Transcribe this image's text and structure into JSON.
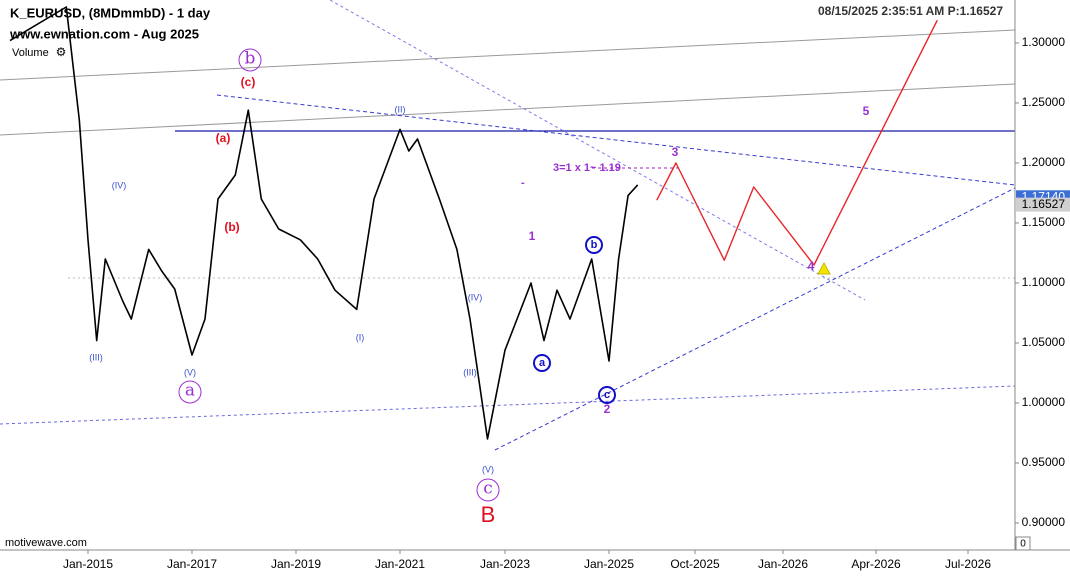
{
  "chart_data": {
    "type": "line",
    "title": "K_EURUSD, (8MDmmbD) - 1 day",
    "subtitle": "www.ewnation.com  - Aug 2025",
    "volume_label": "Volume",
    "timestamp": "08/15/2025 2:35:51 AM  P:1.16527",
    "watermark": "motivewave.com",
    "price_labels": [
      {
        "value": 1.1714,
        "label": "1.17140",
        "color": "#3b6fd6"
      },
      {
        "value": 1.16527,
        "label": "1.16527",
        "color": "#d0d0d0"
      }
    ],
    "xticks": [
      "Jan-2015",
      "Jan-2017",
      "Jan-2019",
      "Jan-2021",
      "Jan-2023",
      "Jan-2025",
      "Oct-2025",
      "Jan-2026",
      "Apr-2026",
      "Jul-2026"
    ],
    "ylim": [
      0.8775,
      1.3358
    ],
    "yticks": [
      {
        "value": 0.9,
        "label": "0.90000"
      },
      {
        "value": 0.95,
        "label": "0.95000"
      },
      {
        "value": 1.0,
        "label": "1.00000"
      },
      {
        "value": 1.05,
        "label": "1.05000"
      },
      {
        "value": 1.1,
        "label": "1.10000"
      },
      {
        "value": 1.15,
        "label": "1.15000"
      },
      {
        "value": 1.2,
        "label": "1.20000"
      },
      {
        "value": 1.25,
        "label": "1.25000"
      },
      {
        "value": 1.3,
        "label": "1.30000"
      }
    ],
    "series": [
      {
        "name": "EURUSD",
        "color": "#000000",
        "x": [
          "Jul-2013",
          "Aug-2014",
          "Nov-2014",
          "Jan-2015",
          "Mar-2015",
          "May-2015",
          "Sep-2015",
          "Nov-2015",
          "Mar-2016",
          "Jun-2016",
          "Sep-2016",
          "Jan-2017",
          "Apr-2017",
          "Jul-2017",
          "Nov-2017",
          "Feb-2018",
          "May-2018",
          "Sep-2018",
          "Feb-2019",
          "Jun-2019",
          "Oct-2019",
          "Mar-2020",
          "Jul-2020",
          "Jan-2021",
          "Mar-2021",
          "May-2021",
          "Oct-2021",
          "Feb-2022",
          "May-2022",
          "Sep-2022",
          "Jan-2023",
          "Jul-2023",
          "Oct-2023",
          "Jan-2024",
          "Apr-2024",
          "Sep-2024",
          "Jan-2025",
          "Feb-2025",
          "Mar-2025",
          "Apr-2025"
        ],
        "values": [
          1.302,
          1.33,
          1.236,
          1.136,
          1.052,
          1.12,
          1.085,
          1.07,
          1.128,
          1.11,
          1.095,
          1.04,
          1.07,
          1.17,
          1.19,
          1.244,
          1.17,
          1.145,
          1.136,
          1.12,
          1.094,
          1.078,
          1.17,
          1.228,
          1.21,
          1.22,
          1.17,
          1.128,
          1.07,
          0.97,
          1.044,
          1.1,
          1.052,
          1.094,
          1.07,
          1.12,
          1.035,
          1.12,
          1.173,
          1.1817
        ]
      },
      {
        "name": "Projection",
        "color": "#e8262a",
        "x": [
          "Jun-2025",
          "Aug-2025",
          "Nov-2025",
          "Dec-2025",
          "Feb-2026",
          "Jun-2026"
        ],
        "values": [
          1.169,
          1.2,
          1.119,
          1.18,
          1.115,
          1.319
        ]
      }
    ],
    "annotations": [
      "(IV)",
      "(III)",
      "(V)",
      "a",
      "b",
      "(c)",
      "(a)",
      "(b)",
      "(II)",
      "(I)",
      "(IV)",
      "(III)",
      "(V)",
      "c",
      "B",
      "1",
      "a",
      "b",
      "c",
      "2",
      "3",
      "4",
      "5",
      "3=1 x 1~ 1.19",
      "-"
    ]
  }
}
